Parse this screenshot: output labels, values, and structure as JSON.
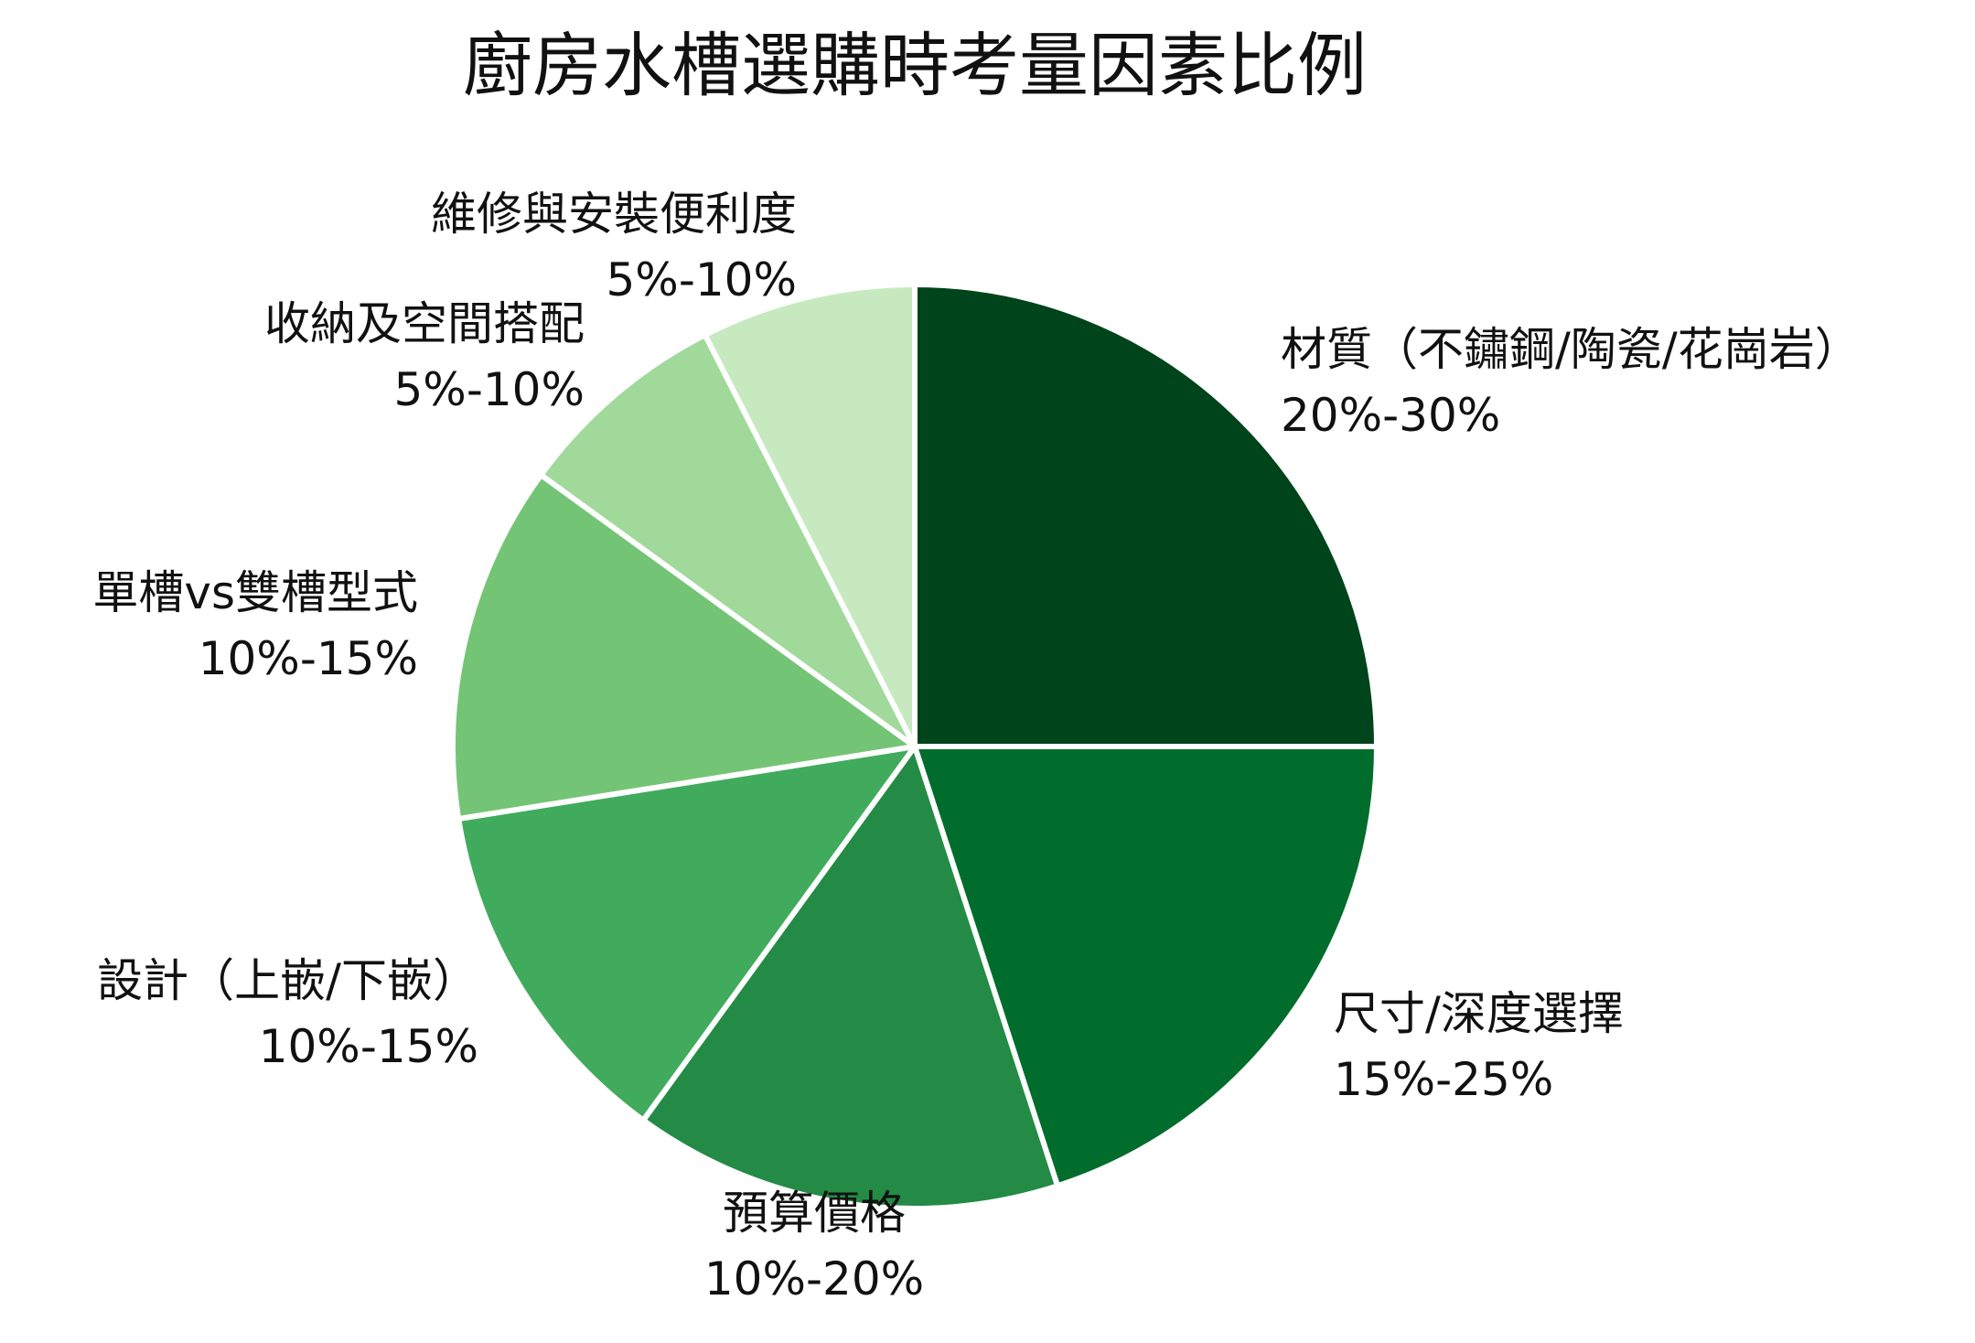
{
  "chart_data": {
    "type": "pie",
    "title": "廚房水槽選購時考量因素比例",
    "slices": [
      {
        "label": "材質（不鏽鋼/陶瓷/花崗岩）",
        "range": "20%-30%",
        "value": 25,
        "color": "#00441b"
      },
      {
        "label": "尺寸/深度選擇",
        "range": "15%-25%",
        "value": 20,
        "color": "#006d2c"
      },
      {
        "label": "預算價格",
        "range": "10%-20%",
        "value": 15,
        "color": "#238b45"
      },
      {
        "label": "設計（上嵌/下嵌）",
        "range": "10%-15%",
        "value": 12.5,
        "color": "#41ab5d"
      },
      {
        "label": "單槽vs雙槽型式",
        "range": "10%-15%",
        "value": 12.5,
        "color": "#74c476"
      },
      {
        "label": "收納及空間搭配",
        "range": "5%-10%",
        "value": 7.5,
        "color": "#a1d99b"
      },
      {
        "label": "維修與安裝便利度",
        "range": "5%-10%",
        "value": 7.5,
        "color": "#c7e9c0"
      }
    ],
    "start_angle": "12 o'clock",
    "direction": "clockwise",
    "legend": "none"
  }
}
